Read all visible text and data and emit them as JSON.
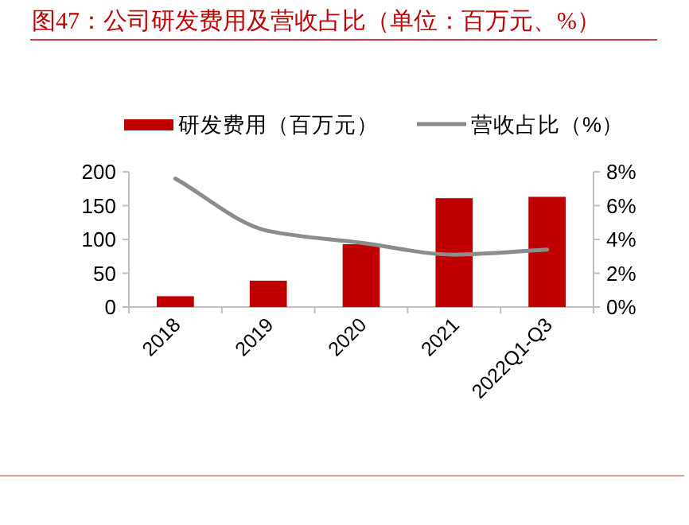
{
  "chart_data": {
    "type": "bar",
    "title": "图47：公司研发费用及营收占比（单位：百万元、%）",
    "categories": [
      "2018",
      "2019",
      "2020",
      "2021",
      "2022Q1-Q3"
    ],
    "series": [
      {
        "name": "研发费用（百万元）",
        "color": "#c00000",
        "values": [
          16,
          39,
          93,
          161,
          163
        ]
      },
      {
        "name": "营收占比（%）",
        "type": "line",
        "axis": "y2",
        "color": "#8c8c8c",
        "values": [
          7.6,
          4.5,
          3.8,
          3.1,
          3.4
        ]
      }
    ],
    "ylim": [
      0,
      200
    ],
    "yticks": [
      0,
      50,
      100,
      150,
      200
    ],
    "y2lim": [
      0,
      8
    ],
    "y2ticks": [
      {
        "value": 0,
        "label": "0%"
      },
      {
        "value": 2,
        "label": "2%"
      },
      {
        "value": 4,
        "label": "4%"
      },
      {
        "value": 6,
        "label": "6%"
      },
      {
        "value": 8,
        "label": "8%"
      }
    ],
    "grid": false,
    "legend": "top",
    "marker": "none",
    "line_style": "solid"
  }
}
